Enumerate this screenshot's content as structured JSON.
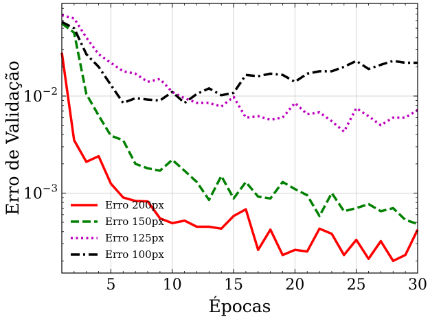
{
  "chart_data": {
    "type": "line",
    "title": "",
    "xlabel": "Épocas",
    "ylabel": "Erro de Validação",
    "yscale": "log",
    "xlim": [
      1,
      30
    ],
    "ylim": [
      0.00015,
      0.09
    ],
    "xticks": [
      5,
      10,
      15,
      20,
      25,
      30
    ],
    "yticks": [
      {
        "value": 0.001,
        "label_base": "10",
        "label_exp": "−3"
      },
      {
        "value": 0.01,
        "label_base": "10",
        "label_exp": "−2"
      }
    ],
    "grid": true,
    "legend_position": "lower-left",
    "x": [
      1,
      2,
      3,
      4,
      5,
      6,
      7,
      8,
      9,
      10,
      11,
      12,
      13,
      14,
      15,
      16,
      17,
      18,
      19,
      20,
      21,
      22,
      23,
      24,
      25,
      26,
      27,
      28,
      29,
      30
    ],
    "series": [
      {
        "name": "Erro 200px",
        "color": "#ff0000",
        "dash": "solid",
        "values": [
          0.028,
          0.0035,
          0.0021,
          0.0024,
          0.00125,
          0.0009,
          0.00083,
          0.00082,
          0.00055,
          0.00049,
          0.00052,
          0.00045,
          0.00045,
          0.00043,
          0.00058,
          0.00068,
          0.00026,
          0.00042,
          0.00023,
          0.00026,
          0.00025,
          0.00043,
          0.00038,
          0.00023,
          0.00033,
          0.00021,
          0.00032,
          0.0002,
          0.00023,
          0.00042
        ]
      },
      {
        "name": "Erro 150px",
        "color": "#008000",
        "dash": "dashed",
        "values": [
          0.056,
          0.045,
          0.0105,
          0.0063,
          0.0039,
          0.0035,
          0.002,
          0.0018,
          0.0017,
          0.0022,
          0.0017,
          0.0013,
          0.00085,
          0.0015,
          0.00088,
          0.0013,
          0.00092,
          0.00088,
          0.0013,
          0.0011,
          0.00095,
          0.00058,
          0.001,
          0.00065,
          0.0007,
          0.00077,
          0.00065,
          0.0007,
          0.00053,
          0.00048
        ]
      },
      {
        "name": "Erro 125px",
        "color": "#bf00bf",
        "dash": "dotted",
        "values": [
          0.068,
          0.063,
          0.04,
          0.027,
          0.022,
          0.018,
          0.017,
          0.014,
          0.015,
          0.011,
          0.0095,
          0.0085,
          0.0085,
          0.0078,
          0.0098,
          0.006,
          0.0062,
          0.0057,
          0.006,
          0.0085,
          0.0065,
          0.0068,
          0.0055,
          0.0043,
          0.0075,
          0.0062,
          0.005,
          0.006,
          0.006,
          0.0072
        ]
      },
      {
        "name": "Erro 100px",
        "color": "#000000",
        "dash": "dashdot",
        "values": [
          0.058,
          0.05,
          0.027,
          0.02,
          0.013,
          0.0085,
          0.0095,
          0.0092,
          0.009,
          0.011,
          0.0085,
          0.0105,
          0.012,
          0.0102,
          0.0108,
          0.0165,
          0.016,
          0.017,
          0.0165,
          0.014,
          0.017,
          0.018,
          0.018,
          0.02,
          0.023,
          0.019,
          0.021,
          0.023,
          0.022,
          0.022
        ]
      }
    ]
  }
}
